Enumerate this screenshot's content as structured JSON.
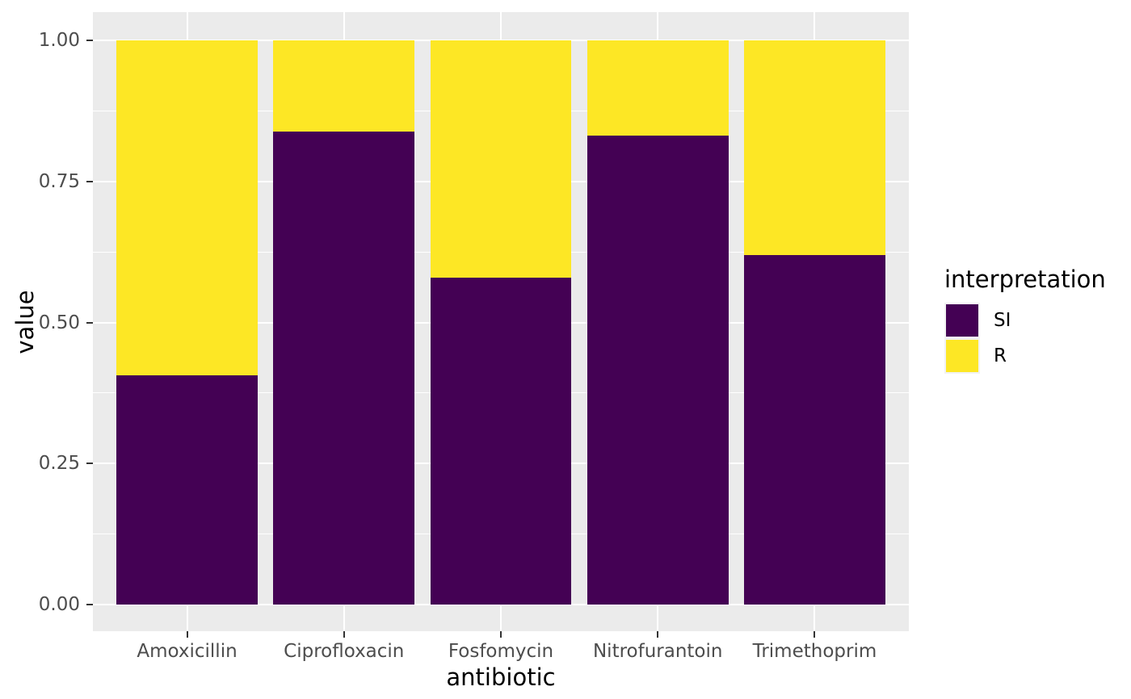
{
  "figure": {
    "background": "#FFFFFF",
    "panel_background": "#EBEBEB",
    "gridline_color": "#FFFFFF",
    "axis_text_color": "#4D4D4D",
    "tick_mark_color": "#333333",
    "title_color": "#000000"
  },
  "chart_data": {
    "type": "bar",
    "subtype": "stacked-proportion",
    "title": "",
    "xlabel": "antibiotic",
    "ylabel": "value",
    "categories": [
      "Amoxicillin",
      "Ciprofloxacin",
      "Fosfomycin",
      "Nitrofurantoin",
      "Trimethoprim"
    ],
    "series": [
      {
        "name": "SI",
        "color": "#440154",
        "values": [
          0.406,
          0.839,
          0.58,
          0.831,
          0.62
        ]
      },
      {
        "name": "R",
        "color": "#FDE725",
        "values": [
          0.594,
          0.161,
          0.42,
          0.169,
          0.38
        ]
      }
    ],
    "ylim": [
      0,
      1
    ],
    "yticks": [
      {
        "value": 0.0,
        "label": "0.00"
      },
      {
        "value": 0.25,
        "label": "0.25"
      },
      {
        "value": 0.5,
        "label": "0.50"
      },
      {
        "value": 0.75,
        "label": "0.75"
      },
      {
        "value": 1.0,
        "label": "1.00"
      }
    ],
    "yminor": [
      0.125,
      0.375,
      0.625,
      0.875
    ],
    "grid": "major-and-minor-horizontal, major-vertical-at-categories",
    "legend": {
      "title": "interpretation",
      "position": "right",
      "entries": [
        {
          "label": "SI",
          "color": "#440154"
        },
        {
          "label": "R",
          "color": "#FDE725"
        }
      ]
    },
    "bar_width_fraction": 0.9
  }
}
